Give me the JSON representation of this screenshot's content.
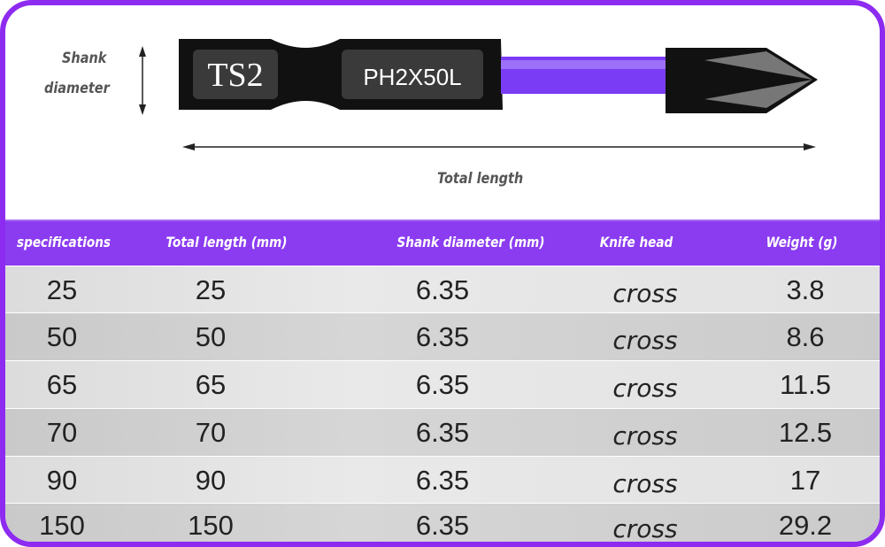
{
  "diagram": {
    "shank_label_line1": "Shank",
    "shank_label_line2": "diameter",
    "total_length_label": "Total length",
    "bit_marking_1": "TS2",
    "bit_marking_2": "PH2X50L",
    "accent_color": "#8b3cf0"
  },
  "table": {
    "headers": [
      "specifications",
      "Total length (mm)",
      "Shank diameter (mm)",
      "Knife head",
      "Weight (g)"
    ],
    "rows": [
      [
        "25",
        "25",
        "6.35",
        "cross",
        "3.8"
      ],
      [
        "50",
        "50",
        "6.35",
        "cross",
        "8.6"
      ],
      [
        "65",
        "65",
        "6.35",
        "cross",
        "11.5"
      ],
      [
        "70",
        "70",
        "6.35",
        "cross",
        "12.5"
      ],
      [
        "90",
        "90",
        "6.35",
        "cross",
        "17"
      ],
      [
        "150",
        "150",
        "6.35",
        "cross",
        "29.2"
      ]
    ]
  }
}
